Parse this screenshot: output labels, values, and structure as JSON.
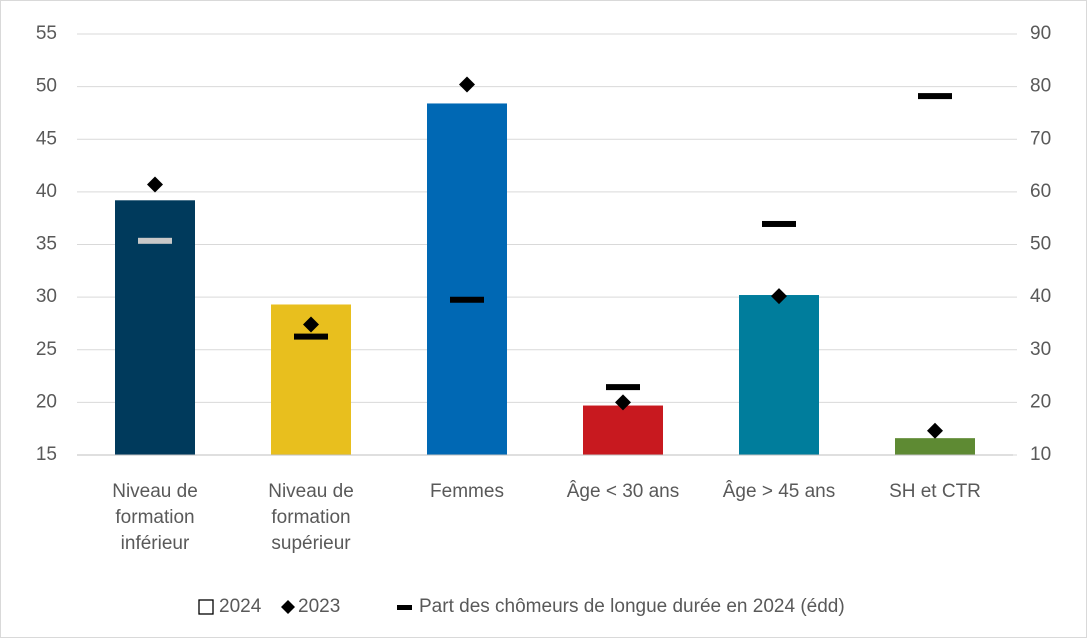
{
  "chart_data": {
    "type": "bar",
    "categories": [
      "Niveau de formation inférieur",
      "Niveau de formation supérieur",
      "Femmes",
      "Âge < 30 ans",
      "Âge > 45 ans",
      "SH et CTR"
    ],
    "series": [
      {
        "name": "2024",
        "type": "bar",
        "colors": [
          "#003a5c",
          "#e8bf1e",
          "#0068b4",
          "#c8191f",
          "#007d9c",
          "#5e8a33"
        ],
        "values": [
          39.2,
          29.3,
          48.4,
          19.7,
          30.2,
          16.6
        ]
      },
      {
        "name": "2023",
        "type": "diamond",
        "color": "#000000",
        "values": [
          40.7,
          27.4,
          50.2,
          20.0,
          30.1,
          17.3
        ]
      },
      {
        "name": "Part des chômeurs de longue durée en 2024 (édd)",
        "type": "dash",
        "axis": "y2",
        "colors": [
          "#c8c8c8",
          "#000000",
          "#000000",
          "#000000",
          "#000000",
          "#000000"
        ],
        "values": [
          50.7,
          32.5,
          39.5,
          22.9,
          53.9,
          78.2
        ]
      }
    ],
    "ylim": [
      15,
      55
    ],
    "yticks": [
      15,
      20,
      25,
      30,
      35,
      40,
      45,
      50,
      55
    ],
    "y2lim": [
      10,
      90
    ],
    "y2ticks": [
      10,
      20,
      30,
      40,
      50,
      60,
      70,
      80,
      90
    ],
    "grid": true
  }
}
